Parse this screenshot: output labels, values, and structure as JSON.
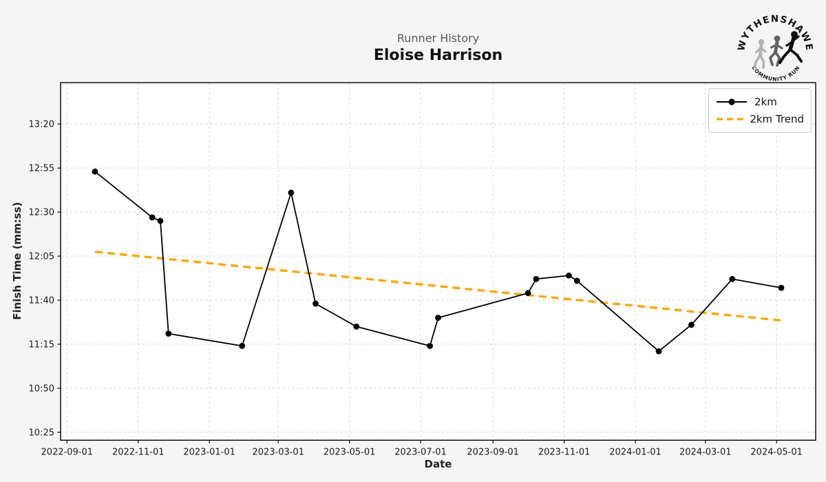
{
  "header": {
    "title": "Runner History",
    "runner_name": "Eloise Harrison"
  },
  "logo": {
    "top_text": "WYTHENSHAWE",
    "bottom_text": "COMMUNITY RUN"
  },
  "style_colors": {
    "figure_bg": "#f5f5f5",
    "plot_bg": "#ffffff",
    "grid": "#d9d9d9",
    "spine": "#000000",
    "series_line": "#000000",
    "trend_line": "#FFA500",
    "title_gray": "#595959"
  },
  "chart_data": {
    "type": "line",
    "title": "Runner History",
    "subtitle": "Eloise Harrison",
    "xlabel": "Date",
    "ylabel": "Finish Time (mm:ss)",
    "grid": true,
    "legend_position": "upper right",
    "x_axis": {
      "epoch": "2022-09-01",
      "range_days": [
        -5.5,
        641.5
      ],
      "ticks": [
        {
          "label": "2022-09-01",
          "day": 0
        },
        {
          "label": "2022-11-01",
          "day": 61
        },
        {
          "label": "2023-01-01",
          "day": 122
        },
        {
          "label": "2023-03-01",
          "day": 181
        },
        {
          "label": "2023-05-01",
          "day": 242
        },
        {
          "label": "2023-07-01",
          "day": 303
        },
        {
          "label": "2023-09-01",
          "day": 365
        },
        {
          "label": "2023-11-01",
          "day": 426
        },
        {
          "label": "2024-01-01",
          "day": 487
        },
        {
          "label": "2024-03-01",
          "day": 547
        },
        {
          "label": "2024-05-01",
          "day": 608
        }
      ]
    },
    "y_axis": {
      "range_seconds": [
        620.5,
        823.5
      ],
      "ticks": [
        {
          "label": "10:25",
          "seconds": 625
        },
        {
          "label": "10:50",
          "seconds": 650
        },
        {
          "label": "11:15",
          "seconds": 675
        },
        {
          "label": "11:40",
          "seconds": 700
        },
        {
          "label": "12:05",
          "seconds": 725
        },
        {
          "label": "12:30",
          "seconds": 750
        },
        {
          "label": "12:55",
          "seconds": 775
        },
        {
          "label": "13:20",
          "seconds": 800
        }
      ]
    },
    "series": [
      {
        "name": "2km",
        "color": "#000000",
        "marker": "circle",
        "points": [
          {
            "date": "2022-09-25",
            "time": "12:53",
            "day": 24,
            "seconds": 773
          },
          {
            "date": "2022-11-13",
            "time": "12:27",
            "day": 73,
            "seconds": 747
          },
          {
            "date": "2022-11-20",
            "time": "12:25",
            "day": 80,
            "seconds": 745
          },
          {
            "date": "2022-11-27",
            "time": "11:21",
            "day": 87,
            "seconds": 681
          },
          {
            "date": "2023-01-29",
            "time": "11:14",
            "day": 150,
            "seconds": 674
          },
          {
            "date": "2023-03-12",
            "time": "12:41",
            "day": 192,
            "seconds": 761
          },
          {
            "date": "2023-04-02",
            "time": "11:38",
            "day": 213,
            "seconds": 698
          },
          {
            "date": "2023-05-07",
            "time": "11:25",
            "day": 248,
            "seconds": 685
          },
          {
            "date": "2023-07-09",
            "time": "11:14",
            "day": 311,
            "seconds": 674
          },
          {
            "date": "2023-07-16",
            "time": "11:30",
            "day": 318,
            "seconds": 690
          },
          {
            "date": "2023-10-01",
            "time": "11:44",
            "day": 395,
            "seconds": 704
          },
          {
            "date": "2023-10-08",
            "time": "11:52",
            "day": 402,
            "seconds": 712
          },
          {
            "date": "2023-11-05",
            "time": "11:54",
            "day": 430,
            "seconds": 714
          },
          {
            "date": "2023-11-12",
            "time": "11:51",
            "day": 437,
            "seconds": 711
          },
          {
            "date": "2024-01-21",
            "time": "11:11",
            "day": 507,
            "seconds": 671
          },
          {
            "date": "2024-02-18",
            "time": "11:26",
            "day": 535,
            "seconds": 686
          },
          {
            "date": "2024-03-24",
            "time": "11:52",
            "day": 570,
            "seconds": 712
          },
          {
            "date": "2024-05-05",
            "time": "11:47",
            "day": 612,
            "seconds": 707
          }
        ]
      }
    ],
    "trend": {
      "name": "2km Trend",
      "color": "#FFA500",
      "style": "dashed",
      "start": {
        "day": 24,
        "seconds": 727.5
      },
      "end": {
        "day": 612,
        "seconds": 688.5
      }
    },
    "legend_entries": [
      {
        "label": "2km"
      },
      {
        "label": "2km Trend"
      }
    ]
  }
}
